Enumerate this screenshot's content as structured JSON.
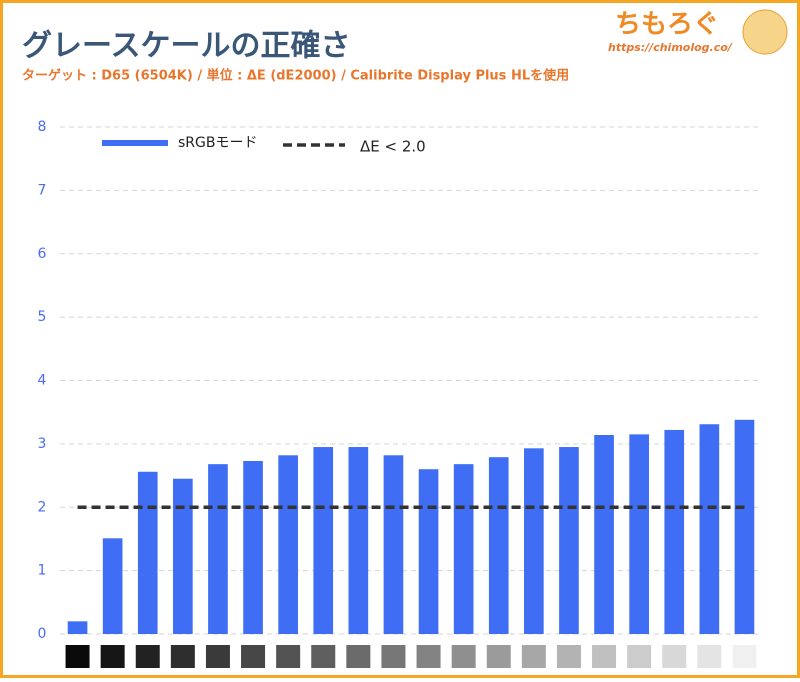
{
  "chart_data": {
    "type": "bar",
    "title": "グレースケールの正確さ",
    "subtitle": "ターゲット : D65 (6504K) / 単位 : ΔE (dE2000) / Calibrite Display Plus HLを使用",
    "branding": {
      "name": "ちもろぐ",
      "url": "https://chimolog.co/"
    },
    "categories": [
      null,
      null,
      null,
      null,
      null,
      null,
      null,
      null,
      null,
      null,
      null,
      null,
      null,
      null,
      null,
      null,
      null,
      null,
      null,
      null
    ],
    "series": [
      {
        "name": "sRGBモード",
        "color": "#3f6ef5",
        "values": [
          0.2,
          1.51,
          2.56,
          2.45,
          2.68,
          2.73,
          2.82,
          2.95,
          2.95,
          2.82,
          2.6,
          2.68,
          2.79,
          2.93,
          2.95,
          3.14,
          3.15,
          3.22,
          3.31,
          3.38
        ]
      }
    ],
    "reference_line": {
      "name": "ΔE < 2.0",
      "value": 2,
      "color": "#333333"
    },
    "ylim": [
      0,
      8
    ],
    "yticks": [
      0,
      1,
      2,
      3,
      4,
      5,
      6,
      7,
      8
    ],
    "grid": true
  }
}
